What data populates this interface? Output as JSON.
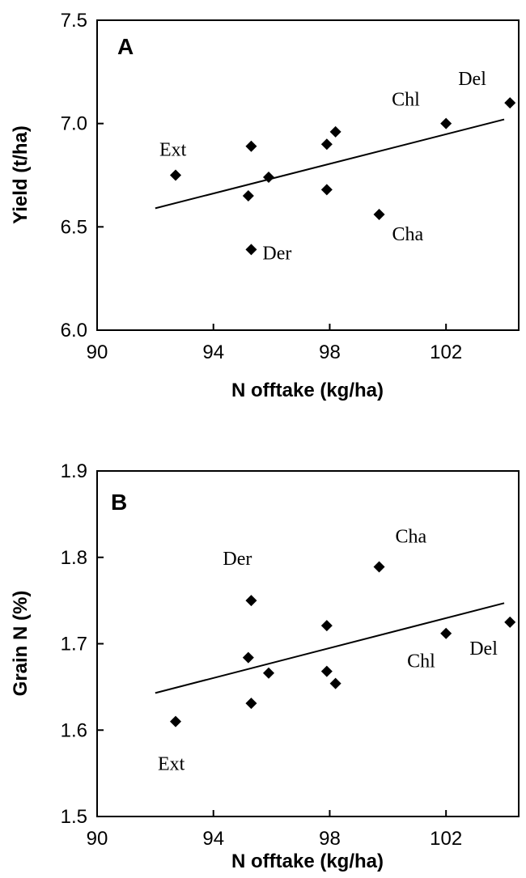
{
  "chart_data": [
    {
      "type": "scatter",
      "panel_label": "A",
      "xlabel": "N offtake (kg/ha)",
      "ylabel": "Yield (t/ha)",
      "xlim": [
        90,
        104.5
      ],
      "ylim": [
        6.0,
        7.5
      ],
      "xticks": [
        "90",
        "94",
        "98",
        "102"
      ],
      "xtick_values": [
        90,
        94,
        98,
        102
      ],
      "yticks": [
        "6.0",
        "6.5",
        "7.0",
        "7.5"
      ],
      "ytick_values": [
        6.0,
        6.5,
        7.0,
        7.5
      ],
      "points": [
        {
          "x": 92.7,
          "y": 6.75,
          "label": "Ext"
        },
        {
          "x": 95.3,
          "y": 6.89,
          "label": ""
        },
        {
          "x": 95.2,
          "y": 6.65,
          "label": ""
        },
        {
          "x": 95.3,
          "y": 6.39,
          "label": "Der"
        },
        {
          "x": 95.9,
          "y": 6.74,
          "label": ""
        },
        {
          "x": 97.9,
          "y": 6.68,
          "label": ""
        },
        {
          "x": 97.9,
          "y": 6.9,
          "label": ""
        },
        {
          "x": 98.2,
          "y": 6.96,
          "label": ""
        },
        {
          "x": 99.7,
          "y": 6.56,
          "label": "Cha"
        },
        {
          "x": 102.0,
          "y": 7.0,
          "label": "Chl"
        },
        {
          "x": 104.2,
          "y": 7.1,
          "label": "Del"
        }
      ],
      "trendline": {
        "x": [
          92.0,
          104.0
        ],
        "y": [
          6.59,
          7.02
        ]
      }
    },
    {
      "type": "scatter",
      "panel_label": "B",
      "xlabel": "N offtake (kg/ha)",
      "ylabel": "Grain N (%)",
      "xlim": [
        90,
        104.5
      ],
      "ylim": [
        1.5,
        1.9
      ],
      "xticks": [
        "90",
        "94",
        "98",
        "102"
      ],
      "xtick_values": [
        90,
        94,
        98,
        102
      ],
      "yticks": [
        "1.5",
        "1.6",
        "1.7",
        "1.8",
        "1.9"
      ],
      "ytick_values": [
        1.5,
        1.6,
        1.7,
        1.8,
        1.9
      ],
      "points": [
        {
          "x": 92.7,
          "y": 1.61,
          "label": "Ext"
        },
        {
          "x": 95.2,
          "y": 1.684,
          "label": ""
        },
        {
          "x": 95.3,
          "y": 1.631,
          "label": ""
        },
        {
          "x": 95.3,
          "y": 1.75,
          "label": "Der"
        },
        {
          "x": 95.9,
          "y": 1.666,
          "label": ""
        },
        {
          "x": 97.9,
          "y": 1.721,
          "label": ""
        },
        {
          "x": 97.9,
          "y": 1.668,
          "label": ""
        },
        {
          "x": 98.2,
          "y": 1.654,
          "label": ""
        },
        {
          "x": 99.7,
          "y": 1.789,
          "label": "Cha"
        },
        {
          "x": 102.0,
          "y": 1.712,
          "label": "Chl"
        },
        {
          "x": 104.2,
          "y": 1.725,
          "label": "Del"
        }
      ],
      "trendline": {
        "x": [
          92.0,
          104.0
        ],
        "y": [
          1.643,
          1.747
        ]
      }
    }
  ]
}
